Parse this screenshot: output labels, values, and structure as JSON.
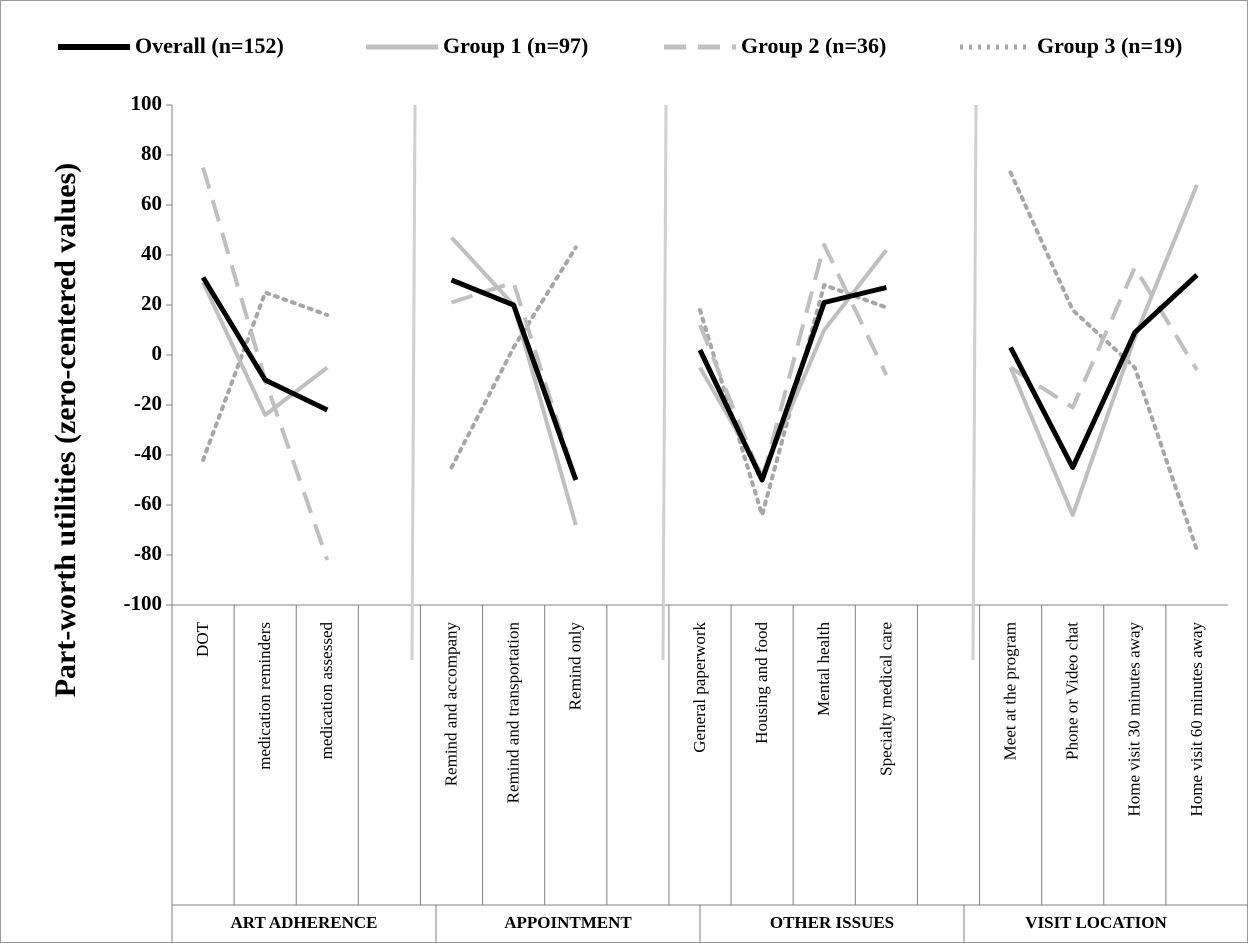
{
  "chart_data": {
    "type": "line",
    "y_axis_label": "Part-worth utilities (zero-centered values)",
    "categories": [
      "DOT",
      "medication reminders",
      "medication assessed",
      null,
      "Remind and accompany",
      "Remind and transportation",
      "Remind only",
      null,
      "General paperwork",
      "Housing and food",
      "Mental health",
      "Specialty medical care",
      null,
      "Meet at the program",
      "Phone or Video chat",
      "Home visit 30 minutes away",
      "Home visit 60 minutes away"
    ],
    "groups": [
      "ART ADHERENCE",
      "APPOINTMENT",
      "OTHER ISSUES",
      "VISIT LOCATION"
    ],
    "series": [
      {
        "name": "Overall (n=152)",
        "color": "#000000",
        "line_style": "solid",
        "values": [
          31,
          -10,
          -22,
          null,
          30,
          20,
          -50,
          null,
          2,
          -50,
          21,
          27,
          null,
          3,
          -45,
          9,
          32
        ]
      },
      {
        "name": "Group 1 (n=97)",
        "color": "#bfbfbf",
        "line_style": "solid",
        "values": [
          29,
          -24,
          -5,
          null,
          47,
          20,
          -68,
          null,
          -5,
          -48,
          10,
          42,
          null,
          -5,
          -64,
          7,
          68
        ]
      },
      {
        "name": "Group 2 (n=36)",
        "color": "#bfbfbf",
        "line_style": "dashed",
        "values": [
          75,
          -10,
          -82,
          null,
          21,
          29,
          -50,
          null,
          12,
          -50,
          44,
          -8,
          null,
          -5,
          -21,
          35,
          -6
        ]
      },
      {
        "name": "Group 3 (n=19)",
        "color": "#a6a6a6",
        "line_style": "dotted",
        "values": [
          -42,
          25,
          16,
          null,
          -45,
          3,
          43,
          null,
          18,
          -64,
          28,
          19,
          null,
          73,
          18,
          -5,
          -78
        ]
      }
    ],
    "ylim": [
      -100,
      100
    ],
    "yticks": [
      -100,
      -80,
      -60,
      -40,
      -20,
      0,
      20,
      40,
      60,
      80,
      100
    ],
    "legend": "top"
  }
}
